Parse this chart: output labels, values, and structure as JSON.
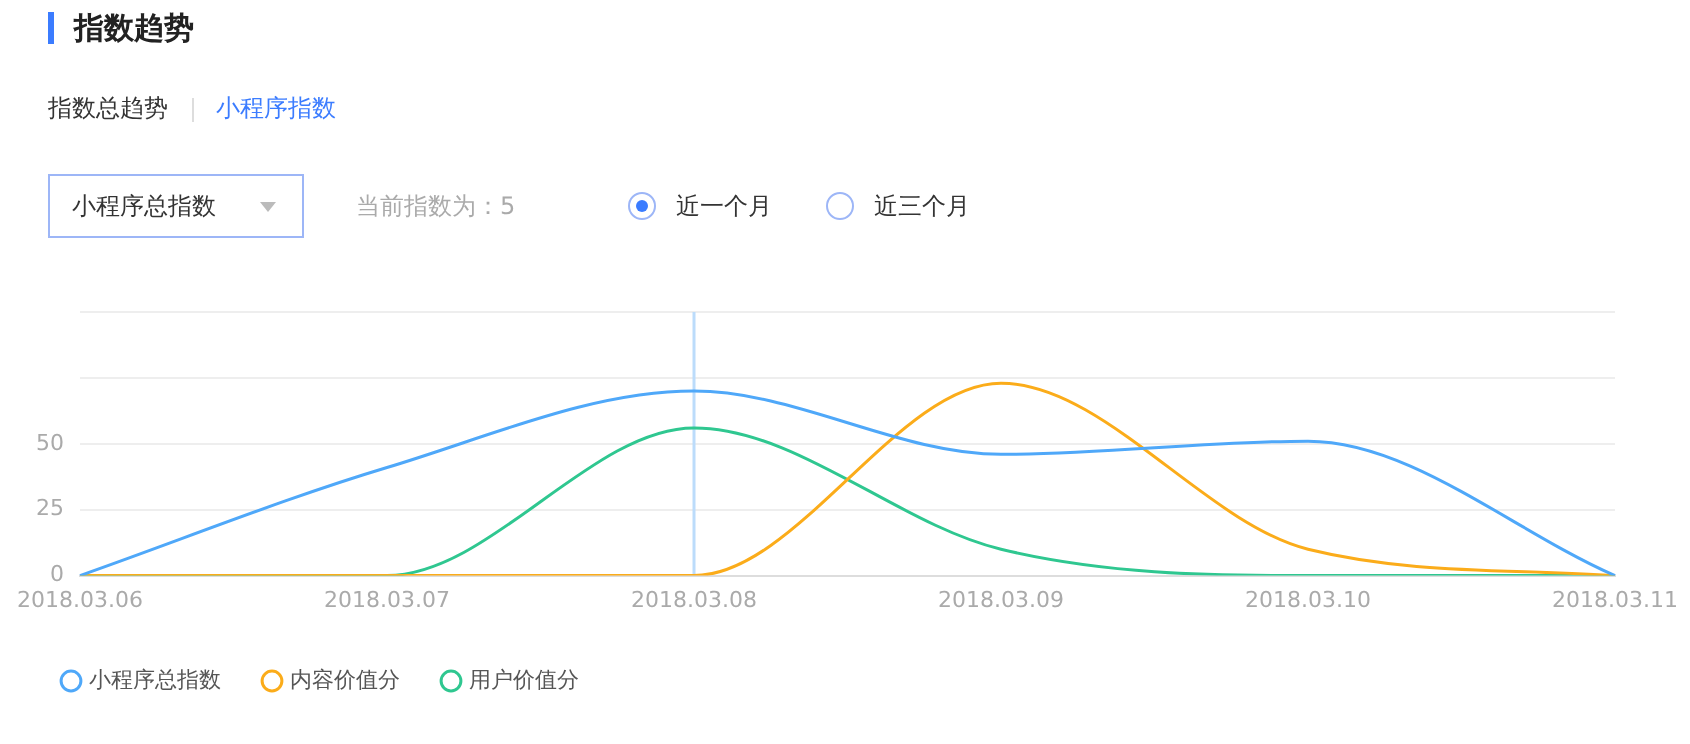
{
  "chart_data": {
    "type": "line",
    "title": "指数趋势",
    "annotations": [
      "指数总趋势",
      "小程序指数",
      "小程序总指数",
      "当前指数为：5",
      "近一个月",
      "近三个月"
    ],
    "categories": [
      "2018.03.06",
      "2018.03.07",
      "2018.03.08",
      "2018.03.09",
      "2018.03.10",
      "2018.03.11"
    ],
    "series": [
      {
        "name": "小程序总指数",
        "color": "#4fa8f9",
        "values": [
          0,
          41,
          70,
          46,
          51,
          0
        ]
      },
      {
        "name": "内容价值分",
        "color": "#fbac1a",
        "values": [
          0,
          0,
          0,
          73,
          10,
          0
        ]
      },
      {
        "name": "用户价值分",
        "color": "#2fc790",
        "values": [
          0,
          0,
          56,
          10,
          0,
          0
        ]
      }
    ],
    "ylim": [
      0,
      100
    ],
    "yticks": [
      0,
      25,
      50,
      {
        "value": 75,
        "label": null
      },
      {
        "value": 100,
        "label": null
      }
    ],
    "grid": "y",
    "legend": "bottom left",
    "marker": "none",
    "line_style": "solid",
    "ref_lines": [
      {
        "axis": "x",
        "value": "2018.03.08",
        "color": "#bcdcfb"
      }
    ]
  }
}
